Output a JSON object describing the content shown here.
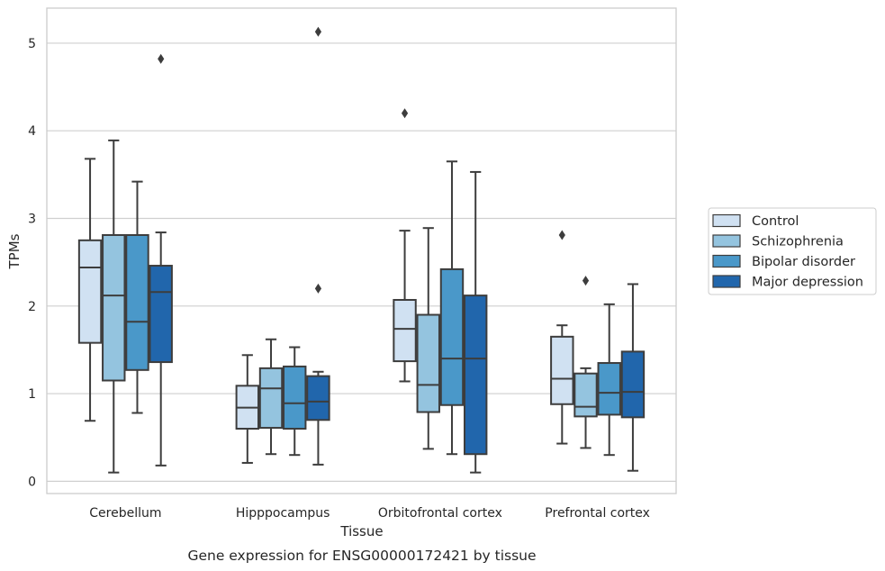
{
  "chart_data": {
    "type": "box",
    "caption": "Gene expression for ENSG00000172421 by tissue",
    "xlabel": "Tissue",
    "ylabel": "TPMs",
    "ylim": [
      -0.14,
      5.4
    ],
    "yticks": [
      "0",
      "1",
      "2",
      "3",
      "4",
      "5"
    ],
    "grid": "horizontal",
    "legend_position": "right",
    "categories": [
      "Cerebellum",
      "Hipppocampus",
      "Orbitofrontal cortex",
      "Prefrontal cortex"
    ],
    "series": [
      {
        "name": "Control",
        "color": "#d0e1f2",
        "boxes": [
          {
            "whisker_low": 0.69,
            "q1": 1.58,
            "median": 2.44,
            "q3": 2.75,
            "whisker_high": 3.68,
            "outliers": []
          },
          {
            "whisker_low": 0.21,
            "q1": 0.6,
            "median": 0.84,
            "q3": 1.09,
            "whisker_high": 1.44,
            "outliers": []
          },
          {
            "whisker_low": 1.14,
            "q1": 1.37,
            "median": 1.74,
            "q3": 2.07,
            "whisker_high": 2.86,
            "outliers": [
              4.2
            ]
          },
          {
            "whisker_low": 0.43,
            "q1": 0.88,
            "median": 1.17,
            "q3": 1.65,
            "whisker_high": 1.78,
            "outliers": [
              2.81
            ]
          }
        ]
      },
      {
        "name": "Schizophrenia",
        "color": "#94c4df",
        "boxes": [
          {
            "whisker_low": 0.1,
            "q1": 1.15,
            "median": 2.12,
            "q3": 2.81,
            "whisker_high": 3.89,
            "outliers": []
          },
          {
            "whisker_low": 0.31,
            "q1": 0.61,
            "median": 1.06,
            "q3": 1.29,
            "whisker_high": 1.62,
            "outliers": []
          },
          {
            "whisker_low": 0.37,
            "q1": 0.79,
            "median": 1.1,
            "q3": 1.9,
            "whisker_high": 2.89,
            "outliers": []
          },
          {
            "whisker_low": 0.38,
            "q1": 0.74,
            "median": 0.85,
            "q3": 1.23,
            "whisker_high": 1.29,
            "outliers": [
              2.29
            ]
          }
        ]
      },
      {
        "name": "Bipolar disorder",
        "color": "#4a98c9",
        "boxes": [
          {
            "whisker_low": 0.78,
            "q1": 1.27,
            "median": 1.82,
            "q3": 2.81,
            "whisker_high": 3.42,
            "outliers": []
          },
          {
            "whisker_low": 0.3,
            "q1": 0.6,
            "median": 0.89,
            "q3": 1.31,
            "whisker_high": 1.53,
            "outliers": []
          },
          {
            "whisker_low": 0.31,
            "q1": 0.87,
            "median": 1.4,
            "q3": 2.42,
            "whisker_high": 3.65,
            "outliers": []
          },
          {
            "whisker_low": 0.3,
            "q1": 0.76,
            "median": 1.01,
            "q3": 1.35,
            "whisker_high": 2.02,
            "outliers": []
          }
        ]
      },
      {
        "name": "Major depression",
        "color": "#2166ac",
        "boxes": [
          {
            "whisker_low": 0.18,
            "q1": 1.36,
            "median": 2.16,
            "q3": 2.46,
            "whisker_high": 2.84,
            "outliers": [
              4.82
            ]
          },
          {
            "whisker_low": 0.19,
            "q1": 0.7,
            "median": 0.91,
            "q3": 1.2,
            "whisker_high": 1.25,
            "outliers": [
              2.2,
              5.13
            ]
          },
          {
            "whisker_low": 0.1,
            "q1": 0.31,
            "median": 1.4,
            "q3": 2.12,
            "whisker_high": 3.53,
            "outliers": []
          },
          {
            "whisker_low": 0.12,
            "q1": 0.73,
            "median": 1.02,
            "q3": 1.48,
            "whisker_high": 2.25,
            "outliers": []
          }
        ]
      }
    ]
  }
}
